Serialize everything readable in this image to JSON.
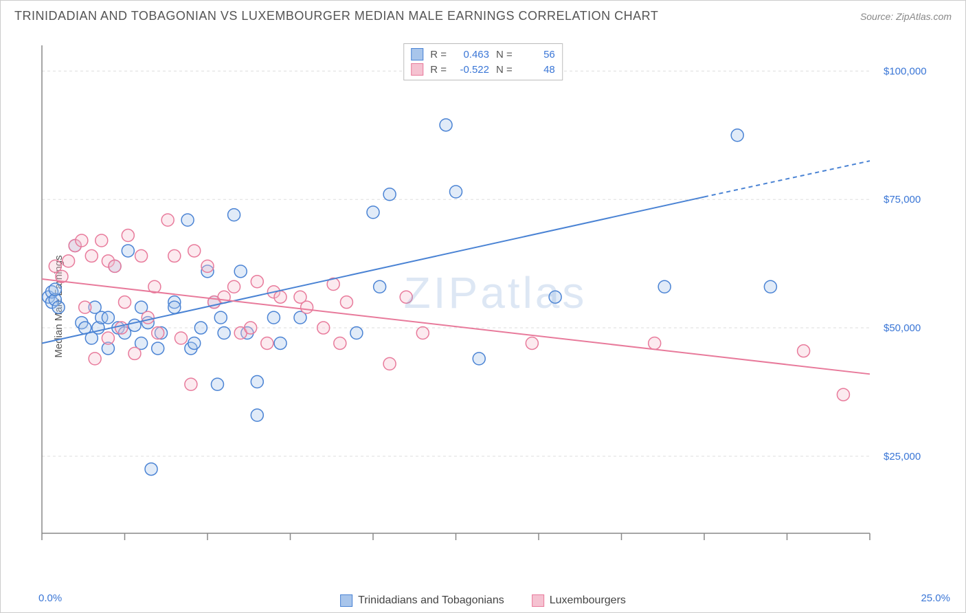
{
  "title": "TRINIDADIAN AND TOBAGONIAN VS LUXEMBOURGER MEDIAN MALE EARNINGS CORRELATION CHART",
  "source": "Source: ZipAtlas.com",
  "watermark": "ZIPatlas",
  "y_axis_label": "Median Male Earnings",
  "chart": {
    "type": "scatter",
    "background_color": "#ffffff",
    "grid_color": "#dddddd",
    "axis_color": "#888888",
    "tick_color": "#888888",
    "xlim": [
      0,
      25
    ],
    "ylim": [
      10000,
      105000
    ],
    "x_ticks": [
      0,
      2.5,
      5,
      7.5,
      10,
      12.5,
      15,
      17.5,
      20,
      22.5,
      25
    ],
    "x_tick_labels_shown": {
      "0": "0.0%",
      "25": "25.0%"
    },
    "y_gridlines": [
      25000,
      50000,
      75000,
      100000
    ],
    "y_tick_labels": {
      "25000": "$25,000",
      "50000": "$50,000",
      "75000": "$75,000",
      "100000": "$100,000"
    },
    "marker_radius": 9,
    "marker_fill_opacity": 0.35,
    "marker_stroke_width": 1.5,
    "trend_line_width": 2
  },
  "series": [
    {
      "name": "Trinidadians and Tobagonians",
      "color_stroke": "#4a83d4",
      "color_fill": "#a8c5eb",
      "R": "0.463",
      "N": "56",
      "trend": {
        "x1": 0,
        "y1": 47000,
        "x2": 20,
        "y2": 75500,
        "x2_ext": 25,
        "y2_ext": 82500
      },
      "points": [
        [
          0.2,
          56000
        ],
        [
          0.3,
          55000
        ],
        [
          0.3,
          57000
        ],
        [
          0.4,
          55500
        ],
        [
          0.4,
          57500
        ],
        [
          0.5,
          54000
        ],
        [
          1.0,
          66000
        ],
        [
          1.2,
          51000
        ],
        [
          1.3,
          50000
        ],
        [
          1.5,
          48000
        ],
        [
          1.6,
          54000
        ],
        [
          1.7,
          50000
        ],
        [
          1.8,
          52000
        ],
        [
          2.0,
          46000
        ],
        [
          2.0,
          52000
        ],
        [
          2.2,
          62000
        ],
        [
          2.3,
          50000
        ],
        [
          2.5,
          49000
        ],
        [
          2.6,
          65000
        ],
        [
          2.8,
          50500
        ],
        [
          3.0,
          47000
        ],
        [
          3.0,
          54000
        ],
        [
          3.2,
          51000
        ],
        [
          3.3,
          22500
        ],
        [
          3.5,
          46000
        ],
        [
          3.6,
          49000
        ],
        [
          4.0,
          55000
        ],
        [
          4.0,
          54000
        ],
        [
          4.4,
          71000
        ],
        [
          4.5,
          46000
        ],
        [
          4.6,
          47000
        ],
        [
          4.8,
          50000
        ],
        [
          5.0,
          61000
        ],
        [
          5.2,
          55000
        ],
        [
          5.3,
          39000
        ],
        [
          5.4,
          52000
        ],
        [
          5.5,
          49000
        ],
        [
          5.8,
          72000
        ],
        [
          6.0,
          61000
        ],
        [
          6.2,
          49000
        ],
        [
          6.5,
          33000
        ],
        [
          6.5,
          39500
        ],
        [
          7.0,
          52000
        ],
        [
          7.2,
          47000
        ],
        [
          7.8,
          52000
        ],
        [
          9.5,
          49000
        ],
        [
          10.0,
          72500
        ],
        [
          10.2,
          58000
        ],
        [
          10.5,
          76000
        ],
        [
          12.2,
          89500
        ],
        [
          12.5,
          76500
        ],
        [
          13.2,
          44000
        ],
        [
          15.5,
          56000
        ],
        [
          18.8,
          58000
        ],
        [
          21.0,
          87500
        ],
        [
          22.0,
          58000
        ]
      ]
    },
    {
      "name": "Luxembourgers",
      "color_stroke": "#e87a9b",
      "color_fill": "#f5c2d1",
      "R": "-0.522",
      "N": "48",
      "trend": {
        "x1": 0,
        "y1": 59500,
        "x2": 25,
        "y2": 41000
      },
      "points": [
        [
          0.4,
          62000
        ],
        [
          0.6,
          60000
        ],
        [
          0.8,
          63000
        ],
        [
          1.0,
          66000
        ],
        [
          1.2,
          67000
        ],
        [
          1.3,
          54000
        ],
        [
          1.5,
          64000
        ],
        [
          1.6,
          44000
        ],
        [
          1.8,
          67000
        ],
        [
          2.0,
          63000
        ],
        [
          2.0,
          48000
        ],
        [
          2.2,
          62000
        ],
        [
          2.4,
          50000
        ],
        [
          2.5,
          55000
        ],
        [
          2.6,
          68000
        ],
        [
          2.8,
          45000
        ],
        [
          3.0,
          64000
        ],
        [
          3.2,
          52000
        ],
        [
          3.4,
          58000
        ],
        [
          3.5,
          49000
        ],
        [
          3.8,
          71000
        ],
        [
          4.0,
          64000
        ],
        [
          4.2,
          48000
        ],
        [
          4.5,
          39000
        ],
        [
          4.6,
          65000
        ],
        [
          5.0,
          62000
        ],
        [
          5.2,
          55000
        ],
        [
          5.5,
          56000
        ],
        [
          5.8,
          58000
        ],
        [
          6.0,
          49000
        ],
        [
          6.3,
          50000
        ],
        [
          6.5,
          59000
        ],
        [
          6.8,
          47000
        ],
        [
          7.0,
          57000
        ],
        [
          7.2,
          56000
        ],
        [
          7.8,
          56000
        ],
        [
          8.0,
          54000
        ],
        [
          8.5,
          50000
        ],
        [
          8.8,
          58500
        ],
        [
          9.0,
          47000
        ],
        [
          9.2,
          55000
        ],
        [
          10.5,
          43000
        ],
        [
          11.0,
          56000
        ],
        [
          11.5,
          49000
        ],
        [
          14.8,
          47000
        ],
        [
          18.5,
          47000
        ],
        [
          23.0,
          45500
        ],
        [
          24.2,
          37000
        ]
      ]
    }
  ],
  "legend_bottom": [
    {
      "label": "Trinidadians and Tobagonians",
      "series": 0
    },
    {
      "label": "Luxembourgers",
      "series": 1
    }
  ]
}
